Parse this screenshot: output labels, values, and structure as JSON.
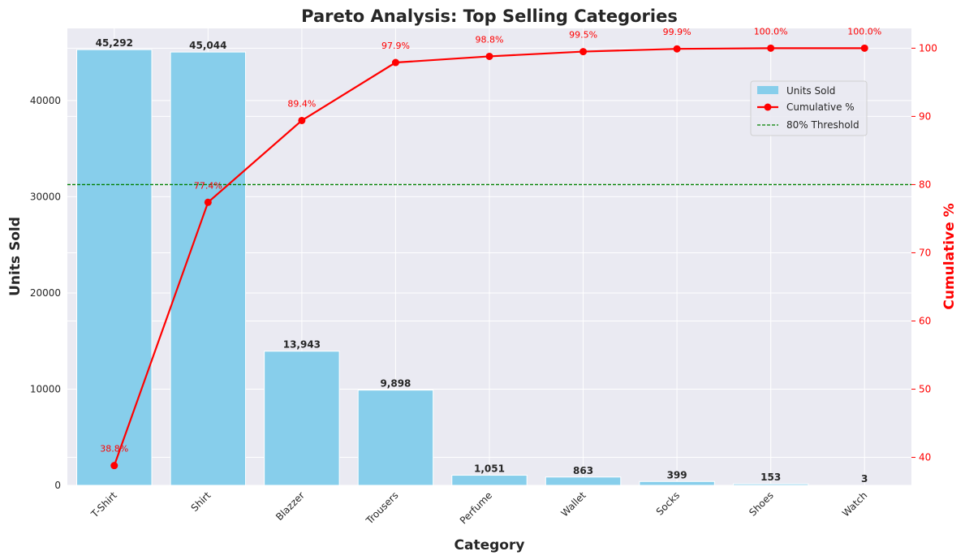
{
  "chart_data": {
    "type": "bar",
    "title": "Pareto Analysis: Top Selling Categories",
    "xlabel": "Category",
    "ylabel": "Units Sold",
    "y2label": "Cumulative %",
    "categories": [
      "T-Shirt",
      "Shirt",
      "Blazzer",
      "Trousers",
      "Perfume",
      "Wallet",
      "Socks",
      "Shoes",
      "Watch"
    ],
    "series": [
      {
        "name": "Units Sold",
        "type": "bar",
        "axis": "left",
        "values": [
          45292,
          45044,
          13943,
          9898,
          1051,
          863,
          399,
          153,
          3
        ],
        "labels": [
          "45,292",
          "45,044",
          "13,943",
          "9,898",
          "1,051",
          "863",
          "399",
          "153",
          "3"
        ]
      },
      {
        "name": "Cumulative %",
        "type": "line",
        "axis": "right",
        "values": [
          38.8,
          77.4,
          89.4,
          97.9,
          98.8,
          99.5,
          99.9,
          100.0,
          100.0
        ],
        "labels": [
          "38.8%",
          "77.4%",
          "89.4%",
          "97.9%",
          "98.8%",
          "99.5%",
          "99.9%",
          "100.0%",
          "100.0%"
        ]
      }
    ],
    "threshold": {
      "name": "80% Threshold",
      "value": 80,
      "axis": "right"
    },
    "ylim": [
      0,
      47500
    ],
    "y2lim": [
      35.9,
      102.9
    ],
    "yticks": [
      0,
      10000,
      20000,
      30000,
      40000
    ],
    "y2ticks": [
      40,
      50,
      60,
      70,
      80,
      90,
      100
    ],
    "grid": true,
    "legend": "upper-right",
    "colors": {
      "bar": "#87ceeb",
      "line": "#ff0000",
      "threshold": "#008000",
      "plot_bg": "#eaeaf2",
      "grid": "#ffffff",
      "text": "#262626",
      "right_axis": "#ff0000"
    }
  }
}
